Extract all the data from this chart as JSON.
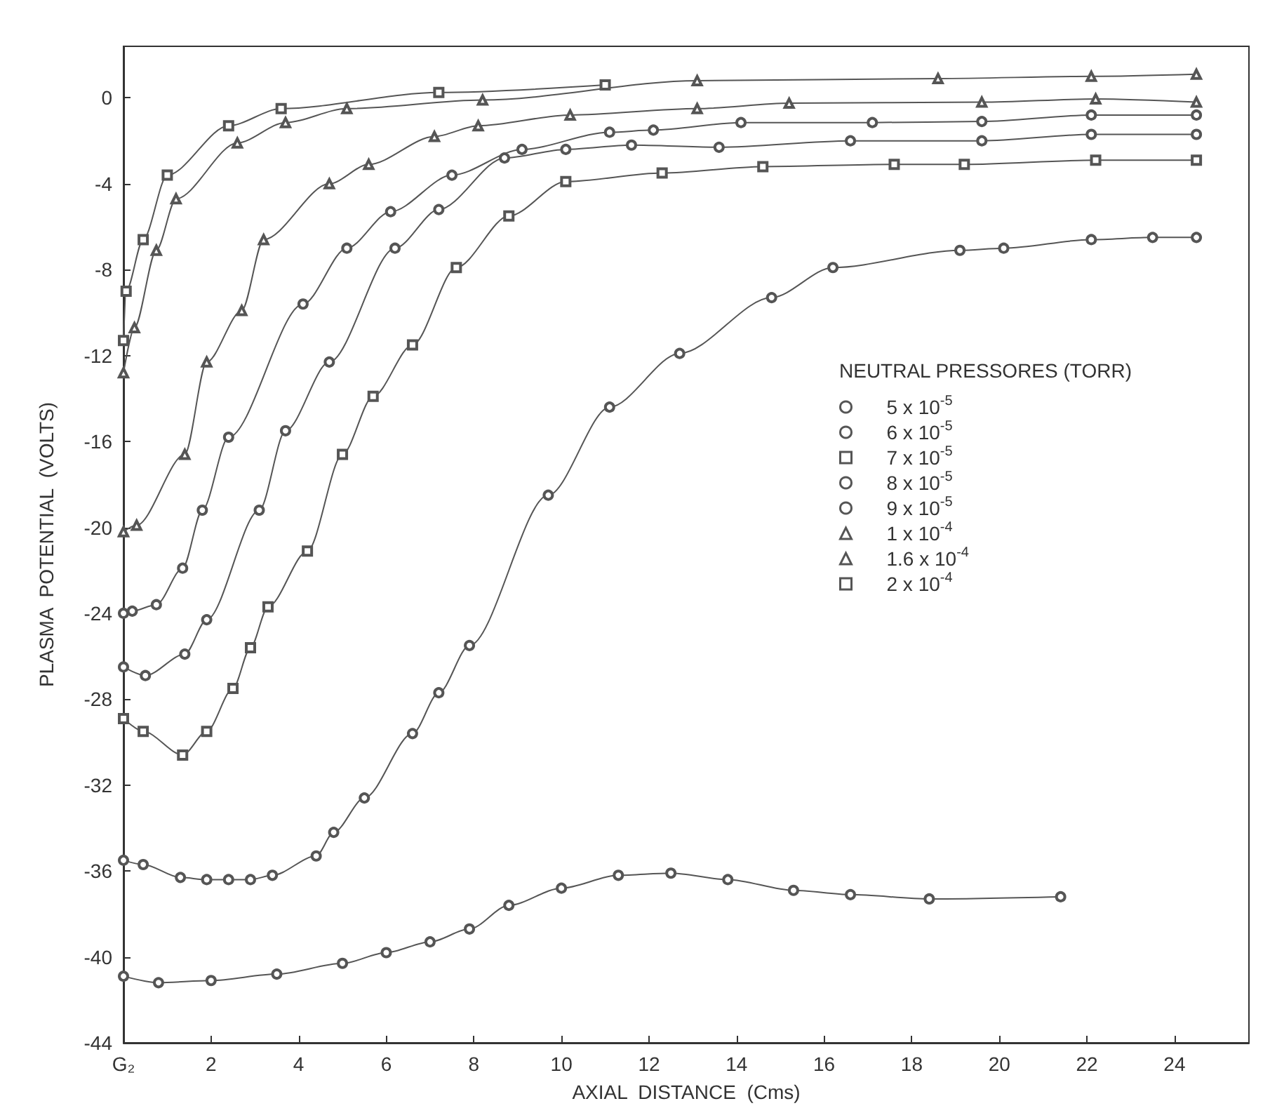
{
  "chart_data": {
    "type": "line",
    "xlabel": "AXIAL  DISTANCE  (Cms)",
    "ylabel": "PLASMA  POTENTIAL  (VOLTS)",
    "legend_title": "NEUTRAL PRESSORES (TORR)",
    "xlim": [
      0,
      25.7
    ],
    "ylim": [
      -44,
      2.4
    ],
    "xticks": [
      {
        "value": 0,
        "label": "G₂"
      },
      2,
      4,
      6,
      8,
      10,
      12,
      14,
      16,
      18,
      20,
      22,
      24
    ],
    "yticks": [
      -44,
      -40,
      -36,
      -32,
      -28,
      -24,
      -20,
      -16,
      -12,
      -8,
      -4,
      0
    ],
    "grid": false,
    "legend": "right",
    "line_style": "solid",
    "series": [
      {
        "name": "5 x 10$^{-5}$",
        "color": "#555555",
        "marker": "circle",
        "x": [
          0,
          0.8,
          2,
          3.5,
          5,
          6,
          7,
          7.9,
          8.8,
          10,
          11.3,
          12.5,
          13.8,
          15.3,
          16.6,
          18.4,
          21.4
        ],
        "values": [
          -40.9,
          -41.2,
          -41.1,
          -40.8,
          -40.3,
          -39.8,
          -39.3,
          -38.7,
          -37.6,
          -36.8,
          -36.2,
          -36.1,
          -36.4,
          -36.9,
          -37.1,
          -37.3,
          -37.2
        ]
      },
      {
        "name": "6 x 10$^{-5}$",
        "color": "#555555",
        "marker": "circle",
        "x": [
          0,
          0.45,
          1.3,
          1.9,
          2.4,
          2.9,
          3.4,
          4.4,
          4.8,
          5.5,
          6.6,
          7.2,
          7.9,
          9.7,
          11.1,
          12.7,
          14.8,
          16.2,
          19.1,
          20.1,
          22.1,
          23.5,
          24.5
        ],
        "values": [
          -35.5,
          -35.7,
          -36.3,
          -36.4,
          -36.4,
          -36.4,
          -36.2,
          -35.3,
          -34.2,
          -32.6,
          -29.6,
          -27.7,
          -25.5,
          -18.5,
          -14.4,
          -11.9,
          -9.3,
          -7.9,
          -7.1,
          -7.0,
          -6.6,
          -6.5,
          -6.5
        ]
      },
      {
        "name": "7 x 10$^{-5}$",
        "color": "#555555",
        "marker": "square",
        "x": [
          0,
          0.45,
          1.35,
          1.9,
          2.5,
          2.9,
          3.3,
          4.2,
          5.0,
          5.7,
          6.6,
          7.6,
          8.8,
          10.1,
          12.3,
          14.6,
          17.6,
          19.2,
          22.2,
          24.5
        ],
        "values": [
          -28.9,
          -29.5,
          -30.6,
          -29.5,
          -27.5,
          -25.6,
          -23.7,
          -21.1,
          -16.6,
          -13.9,
          -11.5,
          -7.9,
          -5.5,
          -3.9,
          -3.5,
          -3.2,
          -3.1,
          -3.1,
          -2.9,
          -2.9
        ]
      },
      {
        "name": "8 x 10$^{-5}$",
        "color": "#555555",
        "marker": "circle",
        "x": [
          0,
          0.5,
          1.4,
          1.9,
          3.1,
          3.7,
          4.7,
          6.2,
          7.2,
          8.7,
          10.1,
          11.6,
          13.6,
          16.6,
          19.6,
          22.1,
          24.5
        ],
        "values": [
          -26.5,
          -26.9,
          -25.9,
          -24.3,
          -19.2,
          -15.5,
          -12.3,
          -7.0,
          -5.2,
          -2.8,
          -2.4,
          -2.2,
          -2.3,
          -2.0,
          -2.0,
          -1.7,
          -1.7
        ]
      },
      {
        "name": "9 x 10$^{-5}$",
        "color": "#555555",
        "marker": "circle",
        "x": [
          0,
          0.2,
          0.75,
          1.35,
          1.8,
          2.4,
          4.1,
          5.1,
          6.1,
          7.5,
          9.1,
          11.1,
          12.1,
          14.1,
          17.1,
          19.6,
          22.1,
          24.5
        ],
        "values": [
          -24.0,
          -23.9,
          -23.6,
          -21.9,
          -19.2,
          -15.8,
          -9.6,
          -7.0,
          -5.3,
          -3.6,
          -2.4,
          -1.6,
          -1.5,
          -1.15,
          -1.15,
          -1.1,
          -0.8,
          -0.8
        ]
      },
      {
        "name": "1 x 10$^{-4}$",
        "color": "#555555",
        "marker": "triangle",
        "x": [
          0,
          0.3,
          1.4,
          1.9,
          2.7,
          3.2,
          4.7,
          5.6,
          7.1,
          8.1,
          10.2,
          13.1,
          15.2,
          19.6,
          22.2,
          24.5
        ],
        "values": [
          -20.2,
          -19.9,
          -16.6,
          -12.3,
          -9.9,
          -6.6,
          -4.0,
          -3.1,
          -1.8,
          -1.3,
          -0.8,
          -0.5,
          -0.25,
          -0.2,
          -0.05,
          -0.2
        ]
      },
      {
        "name": "1.6 x 10$^{-4}$",
        "color": "#555555",
        "marker": "triangle",
        "x": [
          0,
          0.25,
          0.75,
          1.2,
          2.6,
          3.7,
          5.1,
          8.2,
          13.1,
          18.6,
          22.1,
          24.5
        ],
        "values": [
          -12.8,
          -10.7,
          -7.1,
          -4.7,
          -2.1,
          -1.15,
          -0.5,
          -0.1,
          0.8,
          0.9,
          1.0,
          1.1
        ]
      },
      {
        "name": "2 x 10$^{-4}$",
        "color": "#555555",
        "marker": "square",
        "x": [
          0,
          0.06,
          0.45,
          1.0,
          2.4,
          3.6,
          7.2,
          11
        ],
        "values": [
          -11.3,
          -9.0,
          -6.6,
          -3.6,
          -1.3,
          -0.5,
          0.25,
          0.6
        ]
      }
    ]
  }
}
